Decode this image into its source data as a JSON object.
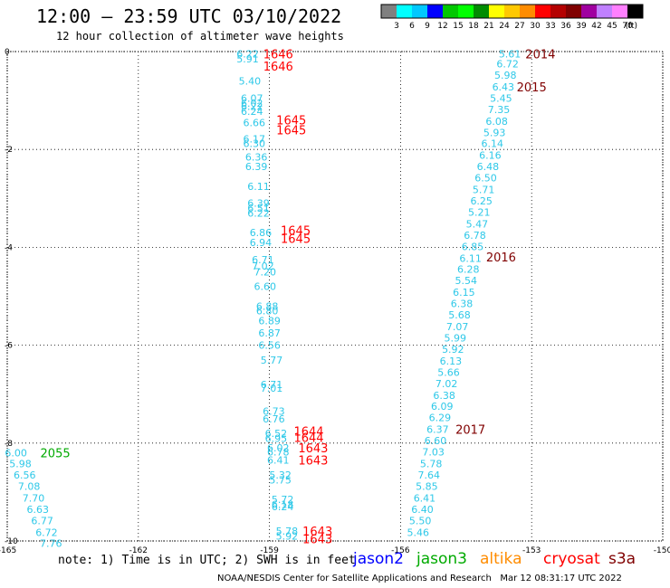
{
  "header": {
    "title": "12:00 — 23:59 UTC 03/10/2022",
    "subtitle": "12 hour collection of altimeter wave heights"
  },
  "colorbar": {
    "unit_label": "(ft)",
    "ticks": [
      "3",
      "6",
      "9",
      "12",
      "15",
      "18",
      "21",
      "24",
      "27",
      "30",
      "33",
      "36",
      "39",
      "42",
      "45",
      "70"
    ],
    "colors": [
      "#808080",
      "#00ffff",
      "#00c8ff",
      "#0000ff",
      "#00c800",
      "#00ff00",
      "#008c00",
      "#ffff00",
      "#ffc800",
      "#ff8c00",
      "#ff0000",
      "#b40000",
      "#800000",
      "#a000a0",
      "#c080ff",
      "#ff80ff",
      "#000000"
    ]
  },
  "footer": {
    "note": "note: 1) Time is in UTC; 2) SWH is in feet",
    "satellites": [
      {
        "name": "jason2",
        "color": "#0000ff"
      },
      {
        "name": "jason3",
        "color": "#00aa00"
      },
      {
        "name": "altika",
        "color": "#ff8c00"
      },
      {
        "name": "cryosat",
        "color": "#ff0000"
      },
      {
        "name": "s3a",
        "color": "#800000"
      }
    ],
    "credit": "NOAA/NESDIS Center for Satellite Applications and Research   Mar 12 08:31:17 UTC 2022"
  },
  "chart_data": {
    "type": "scatter",
    "title": "12:00 — 23:59 UTC 03/10/2022",
    "xlim": [
      -165,
      -150
    ],
    "ylim": [
      -10,
      0
    ],
    "xticks": [
      "-165",
      "-162",
      "-159",
      "-156",
      "-153",
      "-150"
    ],
    "yticks": [
      "0",
      "-2",
      "-4",
      "-6",
      "-8",
      "-10"
    ],
    "grid": true,
    "point_color": "#2ec8e8",
    "tracks": [
      {
        "satellite": "cryosat",
        "color": "#ff0000",
        "points": [
          {
            "x": -159.5,
            "y": -0.05,
            "v": "6.22"
          },
          {
            "x": -159.5,
            "y": -0.15,
            "v": "5.91"
          },
          {
            "x": -159.45,
            "y": -0.6,
            "v": "5.40"
          },
          {
            "x": -159.4,
            "y": -0.95,
            "v": "6.07"
          },
          {
            "x": -159.4,
            "y": -1.05,
            "v": "6.02"
          },
          {
            "x": -159.4,
            "y": -1.12,
            "v": "6.22"
          },
          {
            "x": -159.4,
            "y": -1.22,
            "v": "6.24"
          },
          {
            "x": -159.35,
            "y": -1.45,
            "v": "6.66"
          },
          {
            "x": -159.35,
            "y": -1.78,
            "v": "6.17"
          },
          {
            "x": -159.35,
            "y": -1.88,
            "v": "6.30"
          },
          {
            "x": -159.3,
            "y": -2.15,
            "v": "6.36"
          },
          {
            "x": -159.3,
            "y": -2.35,
            "v": "6.39"
          },
          {
            "x": -159.25,
            "y": -2.75,
            "v": "6.11"
          },
          {
            "x": -159.25,
            "y": -3.1,
            "v": "6.39"
          },
          {
            "x": -159.25,
            "y": -3.2,
            "v": "6.51"
          },
          {
            "x": -159.25,
            "y": -3.3,
            "v": "6.22"
          },
          {
            "x": -159.2,
            "y": -3.7,
            "v": "6.86"
          },
          {
            "x": -159.2,
            "y": -3.9,
            "v": "6.94"
          },
          {
            "x": -159.15,
            "y": -4.25,
            "v": "6.71"
          },
          {
            "x": -159.15,
            "y": -4.38,
            "v": "7.02"
          },
          {
            "x": -159.1,
            "y": -4.5,
            "v": "7.20"
          },
          {
            "x": -159.1,
            "y": -4.8,
            "v": "6.60"
          },
          {
            "x": -159.05,
            "y": -5.2,
            "v": "6.88"
          },
          {
            "x": -159.05,
            "y": -5.3,
            "v": "6.80"
          },
          {
            "x": -159.0,
            "y": -5.5,
            "v": "6.89"
          },
          {
            "x": -159.0,
            "y": -5.75,
            "v": "6.87"
          },
          {
            "x": -159.0,
            "y": -6.0,
            "v": "6.56"
          },
          {
            "x": -158.95,
            "y": -6.3,
            "v": "5.77"
          },
          {
            "x": -158.95,
            "y": -6.8,
            "v": "6.71"
          },
          {
            "x": -158.95,
            "y": -6.88,
            "v": "7.01"
          },
          {
            "x": -158.9,
            "y": -7.35,
            "v": "6.73"
          },
          {
            "x": -158.9,
            "y": -7.5,
            "v": "6.76"
          },
          {
            "x": -158.85,
            "y": -7.8,
            "v": "6.52"
          },
          {
            "x": -158.85,
            "y": -7.9,
            "v": "6.95"
          },
          {
            "x": -158.8,
            "y": -8.1,
            "v": "6.02"
          },
          {
            "x": -158.8,
            "y": -8.18,
            "v": "6.78"
          },
          {
            "x": -158.8,
            "y": -8.35,
            "v": "6.41"
          },
          {
            "x": -158.75,
            "y": -8.65,
            "v": "5.32"
          },
          {
            "x": -158.75,
            "y": -8.75,
            "v": "5.75"
          },
          {
            "x": -158.7,
            "y": -9.15,
            "v": "5.72"
          },
          {
            "x": -158.7,
            "y": -9.25,
            "v": "6.18"
          },
          {
            "x": -158.7,
            "y": -9.3,
            "v": "6.24"
          },
          {
            "x": -158.6,
            "y": -9.8,
            "v": "5.78"
          },
          {
            "x": -158.6,
            "y": -9.9,
            "v": "5.92"
          }
        ],
        "times": [
          {
            "x": -158.8,
            "y": -0.05,
            "t": "1646"
          },
          {
            "x": -158.8,
            "y": -0.3,
            "t": "1646"
          },
          {
            "x": -158.5,
            "y": -1.4,
            "t": "1645"
          },
          {
            "x": -158.5,
            "y": -1.6,
            "t": "1645"
          },
          {
            "x": -158.4,
            "y": -3.65,
            "t": "1645"
          },
          {
            "x": -158.4,
            "y": -3.82,
            "t": "1645"
          },
          {
            "x": -158.1,
            "y": -7.75,
            "t": "1644"
          },
          {
            "x": -158.1,
            "y": -7.88,
            "t": "1644"
          },
          {
            "x": -158.0,
            "y": -8.1,
            "t": "1643"
          },
          {
            "x": -158.0,
            "y": -8.35,
            "t": "1643"
          },
          {
            "x": -157.9,
            "y": -9.8,
            "t": "1643"
          },
          {
            "x": -157.9,
            "y": -9.95,
            "t": "1643"
          }
        ]
      },
      {
        "satellite": "s3a",
        "color": "#800000",
        "points": [
          {
            "x": -153.5,
            "y": -0.05,
            "v": "5.61"
          },
          {
            "x": -153.55,
            "y": -0.25,
            "v": "6.72"
          },
          {
            "x": -153.6,
            "y": -0.48,
            "v": "5.98"
          },
          {
            "x": -153.65,
            "y": -0.72,
            "v": "6.43"
          },
          {
            "x": -153.7,
            "y": -0.95,
            "v": "5.45"
          },
          {
            "x": -153.75,
            "y": -1.18,
            "v": "7.35"
          },
          {
            "x": -153.8,
            "y": -1.42,
            "v": "6.08"
          },
          {
            "x": -153.85,
            "y": -1.65,
            "v": "5.93"
          },
          {
            "x": -153.9,
            "y": -1.88,
            "v": "6.14"
          },
          {
            "x": -153.95,
            "y": -2.12,
            "v": "6.16"
          },
          {
            "x": -154.0,
            "y": -2.35,
            "v": "6.48"
          },
          {
            "x": -154.05,
            "y": -2.58,
            "v": "6.50"
          },
          {
            "x": -154.1,
            "y": -2.82,
            "v": "5.71"
          },
          {
            "x": -154.15,
            "y": -3.05,
            "v": "6.25"
          },
          {
            "x": -154.2,
            "y": -3.28,
            "v": "5.21"
          },
          {
            "x": -154.25,
            "y": -3.52,
            "v": "5.47"
          },
          {
            "x": -154.3,
            "y": -3.75,
            "v": "6.78"
          },
          {
            "x": -154.35,
            "y": -3.98,
            "v": "6.85"
          },
          {
            "x": -154.4,
            "y": -4.22,
            "v": "6.11"
          },
          {
            "x": -154.45,
            "y": -4.45,
            "v": "6.28"
          },
          {
            "x": -154.5,
            "y": -4.68,
            "v": "5.54"
          },
          {
            "x": -154.55,
            "y": -4.92,
            "v": "6.15"
          },
          {
            "x": -154.6,
            "y": -5.15,
            "v": "6.38"
          },
          {
            "x": -154.65,
            "y": -5.38,
            "v": "5.68"
          },
          {
            "x": -154.7,
            "y": -5.62,
            "v": "7.07"
          },
          {
            "x": -154.75,
            "y": -5.85,
            "v": "5.99"
          },
          {
            "x": -154.8,
            "y": -6.08,
            "v": "5.92"
          },
          {
            "x": -154.85,
            "y": -6.32,
            "v": "6.13"
          },
          {
            "x": -154.9,
            "y": -6.55,
            "v": "5.66"
          },
          {
            "x": -154.95,
            "y": -6.78,
            "v": "7.02"
          },
          {
            "x": -155.0,
            "y": -7.02,
            "v": "6.38"
          },
          {
            "x": -155.05,
            "y": -7.25,
            "v": "6.09"
          },
          {
            "x": -155.1,
            "y": -7.48,
            "v": "6.29"
          },
          {
            "x": -155.15,
            "y": -7.72,
            "v": "6.37"
          },
          {
            "x": -155.2,
            "y": -7.95,
            "v": "6.60"
          },
          {
            "x": -155.25,
            "y": -8.18,
            "v": "7.03"
          },
          {
            "x": -155.3,
            "y": -8.42,
            "v": "5.78"
          },
          {
            "x": -155.35,
            "y": -8.65,
            "v": "7.64"
          },
          {
            "x": -155.4,
            "y": -8.88,
            "v": "5.85"
          },
          {
            "x": -155.45,
            "y": -9.12,
            "v": "6.41"
          },
          {
            "x": -155.5,
            "y": -9.35,
            "v": "6.40"
          },
          {
            "x": -155.55,
            "y": -9.58,
            "v": "5.50"
          },
          {
            "x": -155.6,
            "y": -9.82,
            "v": "5.46"
          }
        ],
        "times": [
          {
            "x": -152.8,
            "y": -0.05,
            "t": "2014"
          },
          {
            "x": -153.0,
            "y": -0.72,
            "t": "2015"
          },
          {
            "x": -153.7,
            "y": -4.2,
            "t": "2016"
          },
          {
            "x": -154.4,
            "y": -7.72,
            "t": "2017"
          }
        ]
      },
      {
        "satellite": "jason3",
        "color": "#00aa00",
        "points": [
          {
            "x": -164.8,
            "y": -8.2,
            "v": "6.00"
          },
          {
            "x": -164.7,
            "y": -8.42,
            "v": "5.98"
          },
          {
            "x": -164.6,
            "y": -8.65,
            "v": "6.56"
          },
          {
            "x": -164.5,
            "y": -8.88,
            "v": "7.08"
          },
          {
            "x": -164.4,
            "y": -9.12,
            "v": "7.70"
          },
          {
            "x": -164.3,
            "y": -9.35,
            "v": "6.63"
          },
          {
            "x": -164.2,
            "y": -9.58,
            "v": "6.77"
          },
          {
            "x": -164.1,
            "y": -9.82,
            "v": "6.72"
          },
          {
            "x": -164.0,
            "y": -10.05,
            "v": "7.76"
          }
        ],
        "times": [
          {
            "x": -163.9,
            "y": -8.2,
            "t": "2055"
          }
        ]
      }
    ]
  }
}
